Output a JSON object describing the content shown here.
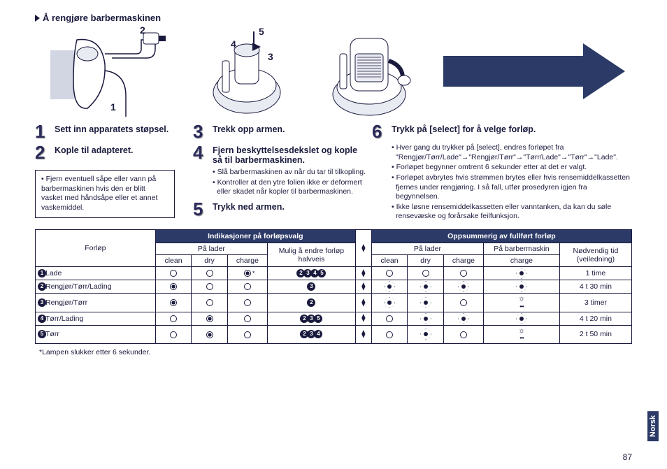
{
  "page_number": "87",
  "side_tab": "Norsk",
  "title": "Å rengjøre barbermaskinen",
  "illus1": {
    "n1": "1",
    "n2": "2"
  },
  "illus2": {
    "n3": "3",
    "n4": "4",
    "n5": "5"
  },
  "arrow_color": "#2c3a68",
  "col1": {
    "step1_num": "1",
    "step1_title": "Sett inn apparatets støpsel.",
    "step2_num": "2",
    "step2_title": "Kople til adapteret.",
    "notebox": "• Fjern eventuell såpe eller vann på barbermaskinen hvis den er blitt vasket med håndsåpe eller et annet vaskemiddel."
  },
  "col2": {
    "step3_num": "3",
    "step3_title": "Trekk opp armen.",
    "step4_num": "4",
    "step4_title": "Fjern beskyttelsesdekslet og kople så til barbermaskinen.",
    "bullets": [
      "Slå barbermaskinen av når du tar til tilkopling.",
      "Kontroller at den ytre folien ikke er deformert eller skadet når kopler til barbermaskinen."
    ],
    "step5_num": "5",
    "step5_title": "Trykk ned armen."
  },
  "col3": {
    "step6_num": "6",
    "step6_title": "Trykk på [select] for å velge forløp.",
    "bullets": [
      "Hver gang du trykker på [select], endres forløpet fra \"Rengjør/Tørr/Lade\"→\"Rengjør/Tørr\"→\"Tørr/Lade\"→\"Tørr\"→\"Lade\".",
      "Forløpet begynner omtrent 6 sekunder etter at det er valgt.",
      "Forløpet avbrytes hvis strømmen brytes eller hvis rensemiddelkassetten fjernes under rengjøring. I så fall, utfør prosedyren igjen fra begynnelsen.",
      "Ikke løsne rensemiddelkassetten eller vanntanken, da kan du søle rensevæske og forårsake feilfunksjon."
    ]
  },
  "table": {
    "hdr_forlop": "Forløp",
    "hdr_ind": "Indikasjoner på forløpsvalg",
    "hdr_opps": "Oppsummerig av fullført forløp",
    "pa_lader": "På lader",
    "mulig": "Mulig å endre forløp halvveis",
    "pa_barber": "På barbermaskin",
    "ned_tid": "Nødvendig tid (veiledning)",
    "clean": "clean",
    "dry": "dry",
    "charge": "charge",
    "rows": [
      {
        "n": "1",
        "label": "Lade",
        "ind": [
          "o",
          "o",
          "ostar"
        ],
        "change": [
          "2",
          "3",
          "4",
          "5"
        ],
        "opps": [
          "o",
          "o",
          "o"
        ],
        "bm": "sun",
        "time": "1 time"
      },
      {
        "n": "2",
        "label": "Rengjør/Tørr/Lading",
        "ind": [
          "fill",
          "o",
          "o"
        ],
        "change": [
          "3"
        ],
        "opps": [
          "sun",
          "sun",
          "sun"
        ],
        "bm": "sun",
        "time": "4 t 30 min"
      },
      {
        "n": "3",
        "label": "Rengjør/Tørr",
        "ind": [
          "fill",
          "o",
          "o"
        ],
        "change": [
          "2"
        ],
        "opps": [
          "sun",
          "sun",
          "o"
        ],
        "bm": "status",
        "time": "3 timer"
      },
      {
        "n": "4",
        "label": "Tørr/Lading",
        "ind": [
          "o",
          "fill",
          "o"
        ],
        "change": [
          "2",
          "3",
          "5"
        ],
        "opps": [
          "o",
          "sun",
          "sun"
        ],
        "bm": "sun",
        "time": "4 t 20 min"
      },
      {
        "n": "5",
        "label": "Tørr",
        "ind": [
          "o",
          "fill",
          "o"
        ],
        "change": [
          "2",
          "3",
          "4"
        ],
        "opps": [
          "o",
          "sun",
          "o"
        ],
        "bm": "status",
        "time": "2 t 50 min"
      }
    ],
    "footnote": "*Lampen slukker etter 6 sekunder."
  }
}
